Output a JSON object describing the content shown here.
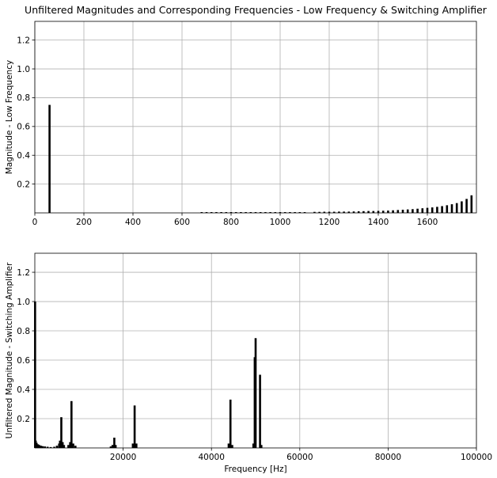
{
  "title": "Unfiltered Magnitudes and Corresponding Frequencies - Low Frequency & Switching Amplifier",
  "chart_data": [
    {
      "type": "bar",
      "title": "Unfiltered Magnitudes and Corresponding Frequencies - Low Frequency & Switching Amplifier",
      "xlabel": "",
      "ylabel": "Magnitude - Low Frequency",
      "xlim": [
        0,
        1800
      ],
      "ylim": [
        0,
        1.33
      ],
      "grid": true,
      "xticks": [
        0,
        200,
        400,
        600,
        800,
        1000,
        1200,
        1400,
        1600
      ],
      "yticks": [
        0.2,
        0.4,
        0.6,
        0.8,
        1.0,
        1.2
      ],
      "xtick_labels": [
        "0",
        "200",
        "400",
        "600",
        "800",
        "1000",
        "1200",
        "1400",
        "1600"
      ],
      "ytick_labels": [
        "0.2",
        "0.4",
        "0.6",
        "0.8",
        "1.0",
        "1.2"
      ],
      "points": [
        {
          "x": 60,
          "y": 0.75
        },
        {
          "x": 680,
          "y": 0.002
        },
        {
          "x": 700,
          "y": 0.002
        },
        {
          "x": 720,
          "y": 0.002
        },
        {
          "x": 740,
          "y": 0.002
        },
        {
          "x": 760,
          "y": 0.002
        },
        {
          "x": 780,
          "y": 0.002
        },
        {
          "x": 800,
          "y": 0.002
        },
        {
          "x": 820,
          "y": 0.002
        },
        {
          "x": 840,
          "y": 0.002
        },
        {
          "x": 860,
          "y": 0.003
        },
        {
          "x": 880,
          "y": 0.003
        },
        {
          "x": 900,
          "y": 0.003
        },
        {
          "x": 920,
          "y": 0.003
        },
        {
          "x": 940,
          "y": 0.003
        },
        {
          "x": 960,
          "y": 0.003
        },
        {
          "x": 980,
          "y": 0.003
        },
        {
          "x": 1000,
          "y": 0.004
        },
        {
          "x": 1020,
          "y": 0.004
        },
        {
          "x": 1040,
          "y": 0.004
        },
        {
          "x": 1060,
          "y": 0.004
        },
        {
          "x": 1080,
          "y": 0.004
        },
        {
          "x": 1100,
          "y": 0.005
        },
        {
          "x": 1140,
          "y": 0.007
        },
        {
          "x": 1160,
          "y": 0.007
        },
        {
          "x": 1180,
          "y": 0.008
        },
        {
          "x": 1200,
          "y": 0.008
        },
        {
          "x": 1220,
          "y": 0.008
        },
        {
          "x": 1240,
          "y": 0.009
        },
        {
          "x": 1260,
          "y": 0.009
        },
        {
          "x": 1280,
          "y": 0.009
        },
        {
          "x": 1300,
          "y": 0.01
        },
        {
          "x": 1320,
          "y": 0.011
        },
        {
          "x": 1340,
          "y": 0.012
        },
        {
          "x": 1360,
          "y": 0.013
        },
        {
          "x": 1380,
          "y": 0.013
        },
        {
          "x": 1400,
          "y": 0.014
        },
        {
          "x": 1420,
          "y": 0.015
        },
        {
          "x": 1440,
          "y": 0.016
        },
        {
          "x": 1460,
          "y": 0.018
        },
        {
          "x": 1480,
          "y": 0.02
        },
        {
          "x": 1500,
          "y": 0.022
        },
        {
          "x": 1520,
          "y": 0.024
        },
        {
          "x": 1540,
          "y": 0.026
        },
        {
          "x": 1560,
          "y": 0.029
        },
        {
          "x": 1580,
          "y": 0.032
        },
        {
          "x": 1600,
          "y": 0.035
        },
        {
          "x": 1620,
          "y": 0.038
        },
        {
          "x": 1640,
          "y": 0.042
        },
        {
          "x": 1660,
          "y": 0.047
        },
        {
          "x": 1680,
          "y": 0.053
        },
        {
          "x": 1700,
          "y": 0.06
        },
        {
          "x": 1720,
          "y": 0.068
        },
        {
          "x": 1740,
          "y": 0.08
        },
        {
          "x": 1760,
          "y": 0.097
        },
        {
          "x": 1780,
          "y": 0.122
        }
      ]
    },
    {
      "type": "bar",
      "title": "",
      "xlabel": "Frequency [Hz]",
      "ylabel": "Unfiltered Magnitude - Switching Amplifier",
      "xlim": [
        0,
        100000
      ],
      "ylim": [
        0,
        1.33
      ],
      "grid": true,
      "xticks": [
        20000,
        40000,
        60000,
        80000,
        100000
      ],
      "yticks": [
        0.2,
        0.4,
        0.6,
        0.8,
        1.0,
        1.2
      ],
      "xtick_labels": [
        "20000",
        "40000",
        "60000",
        "80000",
        "100000"
      ],
      "ytick_labels": [
        "0.2",
        "0.4",
        "0.6",
        "0.8",
        "1.0",
        "1.2"
      ],
      "points": [
        {
          "x": 60,
          "y": 1.0
        },
        {
          "x": 200,
          "y": 0.05
        },
        {
          "x": 400,
          "y": 0.035
        },
        {
          "x": 700,
          "y": 0.025
        },
        {
          "x": 1000,
          "y": 0.02
        },
        {
          "x": 1400,
          "y": 0.015
        },
        {
          "x": 1800,
          "y": 0.012
        },
        {
          "x": 2300,
          "y": 0.01
        },
        {
          "x": 2900,
          "y": 0.008
        },
        {
          "x": 3600,
          "y": 0.006
        },
        {
          "x": 4400,
          "y": 0.008
        },
        {
          "x": 5000,
          "y": 0.015
        },
        {
          "x": 5500,
          "y": 0.03
        },
        {
          "x": 5700,
          "y": 0.05
        },
        {
          "x": 6000,
          "y": 0.21
        },
        {
          "x": 6300,
          "y": 0.04
        },
        {
          "x": 6600,
          "y": 0.02
        },
        {
          "x": 7600,
          "y": 0.02
        },
        {
          "x": 8000,
          "y": 0.04
        },
        {
          "x": 8300,
          "y": 0.32
        },
        {
          "x": 8700,
          "y": 0.03
        },
        {
          "x": 9200,
          "y": 0.015
        },
        {
          "x": 17200,
          "y": 0.01
        },
        {
          "x": 17600,
          "y": 0.02
        },
        {
          "x": 18000,
          "y": 0.07
        },
        {
          "x": 18300,
          "y": 0.02
        },
        {
          "x": 22200,
          "y": 0.03
        },
        {
          "x": 22600,
          "y": 0.29
        },
        {
          "x": 23000,
          "y": 0.03
        },
        {
          "x": 43900,
          "y": 0.03
        },
        {
          "x": 44300,
          "y": 0.33
        },
        {
          "x": 44700,
          "y": 0.02
        },
        {
          "x": 49500,
          "y": 0.03
        },
        {
          "x": 49800,
          "y": 0.62
        },
        {
          "x": 50000,
          "y": 0.75
        },
        {
          "x": 51000,
          "y": 0.5
        },
        {
          "x": 51300,
          "y": 0.02
        }
      ]
    }
  ]
}
